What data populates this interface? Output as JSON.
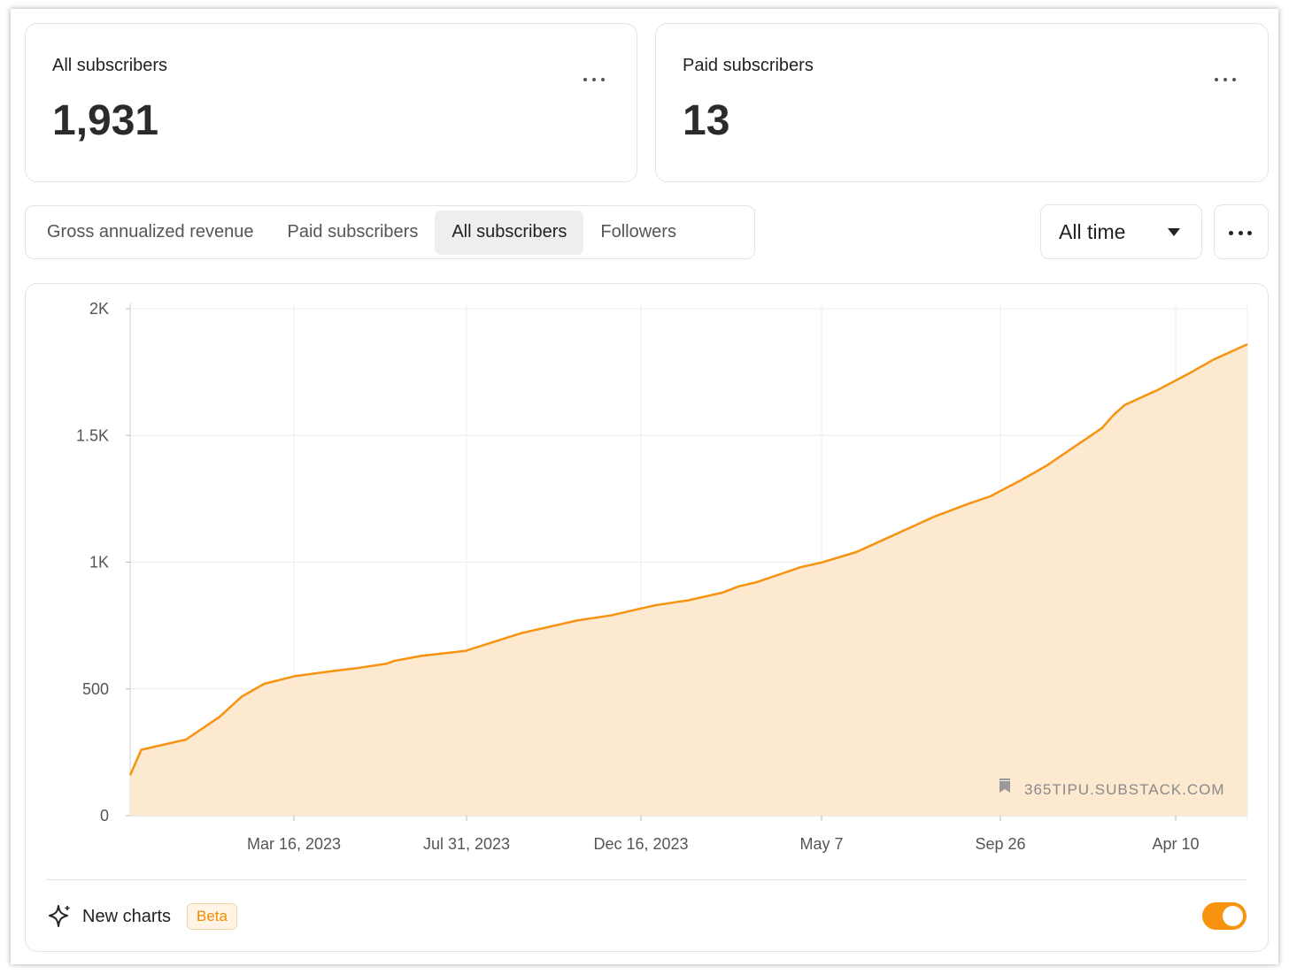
{
  "stats": {
    "all_subscribers": {
      "label": "All subscribers",
      "value": "1,931"
    },
    "paid_subscribers": {
      "label": "Paid subscribers",
      "value": "13"
    }
  },
  "tabs": [
    {
      "label": "Gross annualized revenue",
      "active": false
    },
    {
      "label": "Paid subscribers",
      "active": false
    },
    {
      "label": "All subscribers",
      "active": true
    },
    {
      "label": "Followers",
      "active": false
    }
  ],
  "range_select": {
    "value": "All time"
  },
  "watermark": "365TIPU.SUBSTACK.COM",
  "footer": {
    "label": "New charts",
    "badge": "Beta",
    "toggle_on": true
  },
  "colors": {
    "accent": "#f7930f",
    "fill": "#fde4c8"
  },
  "chart_data": {
    "type": "area",
    "title": "",
    "xlabel": "",
    "ylabel": "",
    "y_ticks": [
      "0",
      "500",
      "1K",
      "1.5K",
      "2K"
    ],
    "ylim": [
      0,
      2000
    ],
    "x_ticks": [
      "Mar 16, 2023",
      "Jul 31, 2023",
      "Dec 16, 2023",
      "May 7",
      "Sep 26",
      "Apr 10"
    ],
    "grid": true,
    "series": [
      {
        "x": [
          0.0,
          0.01,
          0.02,
          0.05,
          0.08,
          0.1,
          0.12,
          0.147,
          0.18,
          0.2,
          0.23,
          0.236,
          0.26,
          0.3,
          0.35,
          0.37,
          0.4,
          0.43,
          0.47,
          0.5,
          0.53,
          0.545,
          0.56,
          0.6,
          0.62,
          0.65,
          0.68,
          0.7,
          0.72,
          0.75,
          0.77,
          0.8,
          0.82,
          0.84,
          0.86,
          0.87,
          0.88,
          0.89,
          0.9,
          0.92,
          0.95,
          0.97,
          1.0
        ],
        "y": [
          160,
          260,
          270,
          300,
          390,
          470,
          520,
          550,
          570,
          580,
          600,
          610,
          630,
          650,
          720,
          740,
          770,
          790,
          830,
          850,
          880,
          905,
          920,
          980,
          1000,
          1040,
          1100,
          1140,
          1180,
          1230,
          1260,
          1330,
          1380,
          1440,
          1500,
          1530,
          1580,
          1620,
          1640,
          1680,
          1750,
          1800,
          1860
        ]
      }
    ]
  }
}
